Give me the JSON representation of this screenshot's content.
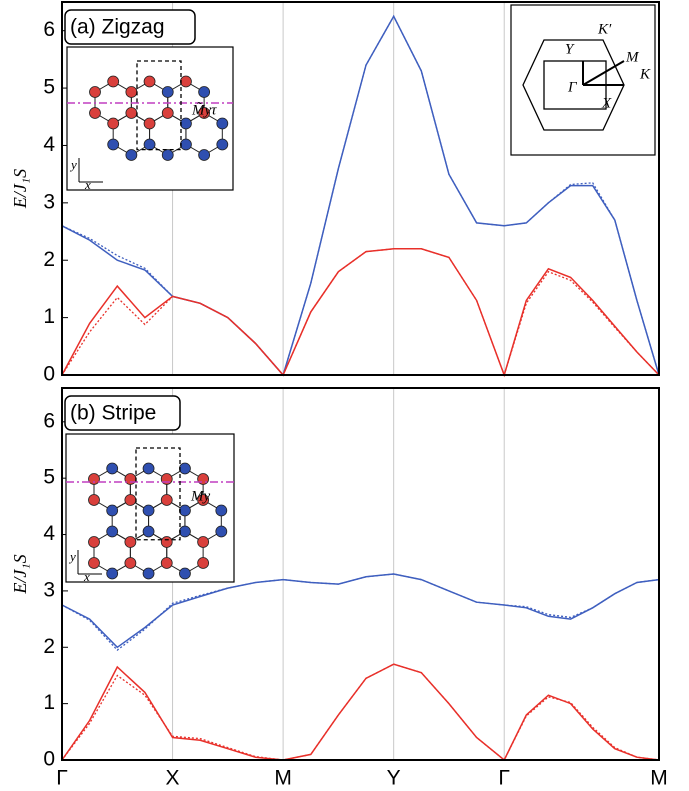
{
  "chart_data": [
    {
      "type": "line",
      "title": "(a) Zigzag",
      "y_label": "E/J₁S",
      "x": [
        0,
        0.25,
        0.5,
        0.75,
        1,
        1.25,
        1.5,
        1.75,
        2,
        2.25,
        2.5,
        2.75,
        3,
        3.25,
        3.5,
        3.75,
        4,
        4.2,
        4.4,
        4.6,
        4.8,
        5,
        5.2,
        5.4
      ],
      "xlim": [
        0,
        5.4
      ],
      "xticks": [
        {
          "value": 0,
          "label": null
        },
        {
          "value": 1,
          "label": null
        },
        {
          "value": 2,
          "label": null
        },
        {
          "value": 3,
          "label": null
        },
        {
          "value": 4,
          "label": null
        },
        {
          "value": 5.4,
          "label": null
        }
      ],
      "ylim": [
        0,
        6.5
      ],
      "yticks": [
        0,
        1,
        2,
        3,
        4,
        5,
        6
      ],
      "grid": true,
      "series": [
        {
          "color": "#3f5fbf",
          "linestyle": "solid",
          "values": [
            2.6,
            2.35,
            2.0,
            1.83,
            1.37,
            1.25,
            1.0,
            0.55,
            0,
            1.6,
            3.6,
            5.4,
            6.25,
            5.3,
            3.5,
            2.65,
            2.6,
            2.65,
            3.0,
            3.3,
            3.3,
            2.7,
            1.3,
            0
          ]
        },
        {
          "color": "#3f5fbf",
          "linestyle": "dotted",
          "values": [
            2.6,
            2.38,
            2.08,
            1.86,
            1.37,
            1.25,
            1.0,
            0.55,
            0,
            1.6,
            3.6,
            5.4,
            6.25,
            5.3,
            3.5,
            2.65,
            2.6,
            2.65,
            3.0,
            3.32,
            3.35,
            2.7,
            1.3,
            0
          ]
        },
        {
          "color": "#e8302a",
          "linestyle": "solid",
          "values": [
            0,
            0.9,
            1.55,
            1.0,
            1.37,
            1.25,
            1.0,
            0.55,
            0,
            1.1,
            1.8,
            2.15,
            2.2,
            2.2,
            2.05,
            1.3,
            0,
            1.3,
            1.85,
            1.7,
            1.3,
            0.85,
            0.4,
            0
          ]
        },
        {
          "color": "#e8302a",
          "linestyle": "dotted",
          "values": [
            0,
            0.75,
            1.35,
            0.88,
            1.37,
            1.25,
            1.0,
            0.55,
            0,
            1.1,
            1.8,
            2.15,
            2.2,
            2.2,
            2.05,
            1.3,
            0,
            1.25,
            1.8,
            1.65,
            1.27,
            0.83,
            0.4,
            0
          ]
        }
      ],
      "inset_labels": [
        "M̃yτ",
        "y",
        "x"
      ],
      "bz_labels": [
        "K′",
        "Y",
        "M",
        "Γ",
        "X",
        "K"
      ]
    },
    {
      "type": "line",
      "title": "(b) Stripe",
      "y_label": "E/J₁S",
      "x": [
        0,
        0.25,
        0.5,
        0.75,
        1,
        1.25,
        1.5,
        1.75,
        2,
        2.25,
        2.5,
        2.75,
        3,
        3.25,
        3.5,
        3.75,
        4,
        4.2,
        4.4,
        4.6,
        4.8,
        5,
        5.2,
        5.4
      ],
      "xlim": [
        0,
        5.4
      ],
      "xticks": [
        {
          "value": 0,
          "label": "Γ"
        },
        {
          "value": 1,
          "label": "X"
        },
        {
          "value": 2,
          "label": "M"
        },
        {
          "value": 3,
          "label": "Y"
        },
        {
          "value": 4,
          "label": "Γ"
        },
        {
          "value": 5.4,
          "label": "M"
        }
      ],
      "ylim": [
        0,
        6.6
      ],
      "yticks": [
        0,
        1,
        2,
        3,
        4,
        5,
        6
      ],
      "grid": true,
      "series": [
        {
          "color": "#3f5fbf",
          "linestyle": "solid",
          "values": [
            2.75,
            2.5,
            2.0,
            2.35,
            2.75,
            2.9,
            3.05,
            3.15,
            3.2,
            3.15,
            3.12,
            3.25,
            3.3,
            3.2,
            3.0,
            2.8,
            2.75,
            2.7,
            2.55,
            2.5,
            2.7,
            2.95,
            3.15,
            3.2
          ]
        },
        {
          "color": "#3f5fbf",
          "linestyle": "dotted",
          "values": [
            2.75,
            2.48,
            1.95,
            2.32,
            2.78,
            2.92,
            3.05,
            3.15,
            3.2,
            3.15,
            3.12,
            3.25,
            3.3,
            3.2,
            3.0,
            2.8,
            2.75,
            2.72,
            2.58,
            2.53,
            2.7,
            2.95,
            3.15,
            3.2
          ]
        },
        {
          "color": "#e8302a",
          "linestyle": "solid",
          "values": [
            0,
            0.7,
            1.65,
            1.2,
            0.4,
            0.35,
            0.2,
            0.05,
            0,
            0.1,
            0.8,
            1.45,
            1.7,
            1.55,
            1.0,
            0.4,
            0,
            0.8,
            1.15,
            1.0,
            0.55,
            0.2,
            0.05,
            0
          ]
        },
        {
          "color": "#e8302a",
          "linestyle": "dotted",
          "values": [
            0,
            0.65,
            1.5,
            1.15,
            0.42,
            0.38,
            0.22,
            0.06,
            0,
            0.1,
            0.8,
            1.45,
            1.7,
            1.55,
            1.0,
            0.4,
            0,
            0.78,
            1.12,
            1.02,
            0.58,
            0.22,
            0.05,
            0
          ]
        }
      ],
      "inset_labels": [
        "My",
        "y",
        "x"
      ]
    }
  ]
}
